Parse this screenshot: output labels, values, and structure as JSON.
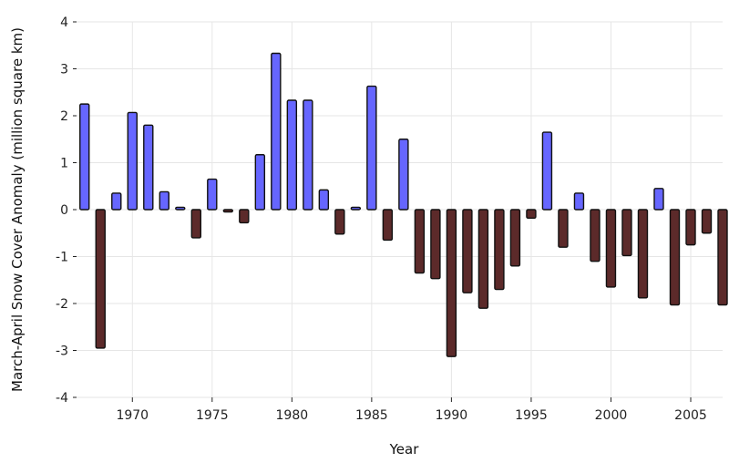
{
  "chart_data": {
    "type": "bar",
    "xlabel": "Year",
    "ylabel": "March-April Snow Cover Anomaly (million square km)",
    "ylim": [
      -4,
      4
    ],
    "xlim": [
      1966.5,
      2007
    ],
    "grid": true,
    "x_ticks": [
      1970,
      1975,
      1980,
      1985,
      1990,
      1995,
      2000,
      2005
    ],
    "y_ticks": [
      -4,
      -3,
      -2,
      -1,
      0,
      1,
      2,
      3,
      4
    ],
    "colors": {
      "positive": "#6666ff",
      "negative": "#5c2a2a"
    },
    "x": [
      1967,
      1968,
      1969,
      1970,
      1971,
      1972,
      1973,
      1974,
      1975,
      1976,
      1977,
      1978,
      1979,
      1980,
      1981,
      1982,
      1983,
      1984,
      1985,
      1986,
      1987,
      1988,
      1989,
      1990,
      1991,
      1992,
      1993,
      1994,
      1995,
      1996,
      1997,
      1998,
      1999,
      2000,
      2001,
      2002,
      2003,
      2004,
      2005,
      2006,
      2007
    ],
    "values": [
      2.25,
      -2.95,
      0.35,
      2.07,
      1.8,
      0.38,
      0.05,
      -0.6,
      0.65,
      -0.05,
      -0.28,
      1.17,
      3.33,
      2.33,
      2.33,
      0.42,
      -0.52,
      0.05,
      2.63,
      -0.65,
      1.5,
      -1.35,
      -1.47,
      -3.13,
      -1.77,
      -2.1,
      -1.7,
      -1.2,
      -0.18,
      1.65,
      -0.8,
      0.35,
      -1.1,
      -1.65,
      -0.98,
      -1.88,
      0.45,
      -2.03,
      -0.75,
      -0.5,
      -2.03
    ]
  }
}
